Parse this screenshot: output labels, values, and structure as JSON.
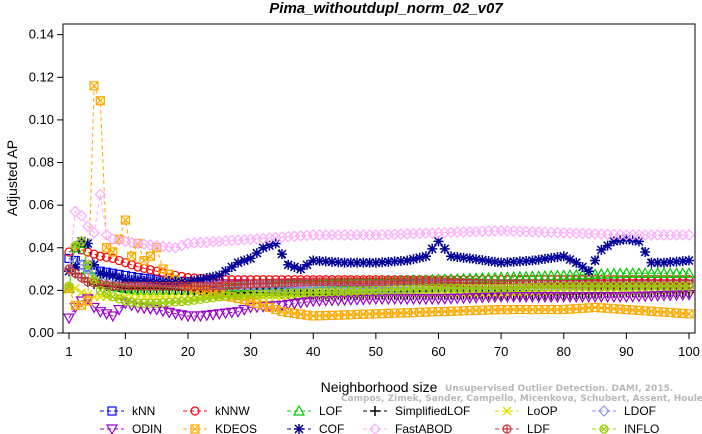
{
  "chart_data": {
    "type": "line",
    "title": "Pima_withoutdupl_norm_02_v07",
    "xlabel": "Neighborhood size",
    "ylabel": "Adjusted AP",
    "xlim": [
      1,
      100
    ],
    "ylim": [
      0,
      0.145
    ],
    "x_ticks": [
      1,
      10,
      20,
      30,
      40,
      50,
      60,
      70,
      80,
      90,
      100
    ],
    "y_ticks": [
      "0.00",
      "0.02",
      "0.04",
      "0.06",
      "0.08",
      "0.10",
      "0.12",
      "0.14"
    ],
    "grid": false,
    "legend_position": "bottom",
    "watermark": [
      "Unsupervised Outlier Detection. DAMI, 2015.",
      "Campos, Zimek, Sander, Campello, Micenkova, Schubert, Assent, Houle"
    ],
    "series": [
      {
        "name": "kNN",
        "color": "#0000ff",
        "marker": "square",
        "points": [
          [
            1,
            0.035
          ],
          [
            2,
            0.034
          ],
          [
            3,
            0.032
          ],
          [
            4,
            0.031
          ],
          [
            5,
            0.03
          ],
          [
            6,
            0.029
          ],
          [
            8,
            0.028
          ],
          [
            10,
            0.027
          ],
          [
            12,
            0.026
          ],
          [
            15,
            0.025
          ],
          [
            20,
            0.024
          ],
          [
            25,
            0.023
          ],
          [
            30,
            0.023
          ],
          [
            40,
            0.023
          ],
          [
            50,
            0.023
          ],
          [
            60,
            0.023
          ],
          [
            70,
            0.023
          ],
          [
            80,
            0.023
          ],
          [
            90,
            0.023
          ],
          [
            100,
            0.023
          ]
        ]
      },
      {
        "name": "kNNW",
        "color": "#ff0000",
        "marker": "circle",
        "points": [
          [
            1,
            0.038
          ],
          [
            2,
            0.04
          ],
          [
            3,
            0.039
          ],
          [
            4,
            0.038
          ],
          [
            5,
            0.037
          ],
          [
            6,
            0.036
          ],
          [
            8,
            0.035
          ],
          [
            10,
            0.033
          ],
          [
            12,
            0.031
          ],
          [
            15,
            0.029
          ],
          [
            18,
            0.027
          ],
          [
            20,
            0.026
          ],
          [
            25,
            0.025
          ],
          [
            30,
            0.025
          ],
          [
            40,
            0.025
          ],
          [
            50,
            0.025
          ],
          [
            60,
            0.025
          ],
          [
            70,
            0.025
          ],
          [
            80,
            0.025
          ],
          [
            90,
            0.025
          ],
          [
            100,
            0.025
          ]
        ]
      },
      {
        "name": "LOF",
        "color": "#00cc00",
        "marker": "triangle-up",
        "points": [
          [
            1,
            0.021
          ],
          [
            2,
            0.04
          ],
          [
            3,
            0.042
          ],
          [
            4,
            0.03
          ],
          [
            5,
            0.026
          ],
          [
            6,
            0.024
          ],
          [
            8,
            0.022
          ],
          [
            10,
            0.021
          ],
          [
            12,
            0.02
          ],
          [
            15,
            0.02
          ],
          [
            20,
            0.02
          ],
          [
            25,
            0.021
          ],
          [
            30,
            0.022
          ],
          [
            40,
            0.023
          ],
          [
            50,
            0.024
          ],
          [
            60,
            0.025
          ],
          [
            70,
            0.026
          ],
          [
            80,
            0.027
          ],
          [
            90,
            0.028
          ],
          [
            100,
            0.028
          ]
        ]
      },
      {
        "name": "SimplifiedLOF",
        "color": "#000000",
        "marker": "plus",
        "points": [
          [
            1,
            0.03
          ],
          [
            2,
            0.028
          ],
          [
            3,
            0.026
          ],
          [
            4,
            0.024
          ],
          [
            5,
            0.023
          ],
          [
            6,
            0.022
          ],
          [
            8,
            0.022
          ],
          [
            10,
            0.021
          ],
          [
            15,
            0.021
          ],
          [
            20,
            0.02
          ],
          [
            25,
            0.019
          ],
          [
            30,
            0.019
          ],
          [
            40,
            0.018
          ],
          [
            50,
            0.018
          ],
          [
            60,
            0.018
          ],
          [
            70,
            0.018
          ],
          [
            80,
            0.018
          ],
          [
            90,
            0.019
          ],
          [
            100,
            0.019
          ]
        ]
      },
      {
        "name": "LoOP",
        "color": "#e0e000",
        "marker": "cross",
        "points": [
          [
            1,
            0.02
          ],
          [
            2,
            0.021
          ],
          [
            3,
            0.019
          ],
          [
            4,
            0.018
          ],
          [
            5,
            0.017
          ],
          [
            8,
            0.017
          ],
          [
            10,
            0.017
          ],
          [
            15,
            0.017
          ],
          [
            20,
            0.017
          ],
          [
            30,
            0.017
          ],
          [
            40,
            0.017
          ],
          [
            50,
            0.018
          ],
          [
            60,
            0.018
          ],
          [
            70,
            0.018
          ],
          [
            80,
            0.019
          ],
          [
            90,
            0.019
          ],
          [
            100,
            0.02
          ]
        ]
      },
      {
        "name": "LDOF",
        "color": "#9090ff",
        "marker": "diamond",
        "points": [
          [
            1,
            0.03
          ],
          [
            2,
            0.033
          ],
          [
            3,
            0.032
          ],
          [
            4,
            0.03
          ],
          [
            5,
            0.028
          ],
          [
            6,
            0.027
          ],
          [
            8,
            0.026
          ],
          [
            10,
            0.025
          ],
          [
            15,
            0.024
          ],
          [
            20,
            0.023
          ],
          [
            30,
            0.022
          ],
          [
            40,
            0.021
          ],
          [
            50,
            0.021
          ],
          [
            60,
            0.021
          ],
          [
            70,
            0.021
          ],
          [
            80,
            0.022
          ],
          [
            90,
            0.022
          ],
          [
            100,
            0.022
          ]
        ]
      },
      {
        "name": "ODIN",
        "color": "#9900cc",
        "marker": "triangle-down",
        "points": [
          [
            1,
            0.007
          ],
          [
            2,
            0.012
          ],
          [
            3,
            0.015
          ],
          [
            4,
            0.016
          ],
          [
            5,
            0.012
          ],
          [
            6,
            0.01
          ],
          [
            7,
            0.009
          ],
          [
            8,
            0.008
          ],
          [
            10,
            0.014
          ],
          [
            12,
            0.012
          ],
          [
            15,
            0.011
          ],
          [
            18,
            0.009
          ],
          [
            20,
            0.008
          ],
          [
            22,
            0.008
          ],
          [
            25,
            0.009
          ],
          [
            28,
            0.01
          ],
          [
            30,
            0.012
          ],
          [
            35,
            0.013
          ],
          [
            40,
            0.015
          ],
          [
            50,
            0.016
          ],
          [
            60,
            0.016
          ],
          [
            70,
            0.017
          ],
          [
            80,
            0.017
          ],
          [
            90,
            0.017
          ],
          [
            100,
            0.018
          ]
        ]
      },
      {
        "name": "KDEOS",
        "color": "#ffaa00",
        "marker": "square-x",
        "points": [
          [
            1,
            0.021
          ],
          [
            2,
            0.013
          ],
          [
            3,
            0.013
          ],
          [
            4,
            0.015
          ],
          [
            5,
            0.116
          ],
          [
            6,
            0.109
          ],
          [
            7,
            0.04
          ],
          [
            8,
            0.038
          ],
          [
            9,
            0.044
          ],
          [
            10,
            0.053
          ],
          [
            11,
            0.036
          ],
          [
            12,
            0.042
          ],
          [
            13,
            0.034
          ],
          [
            14,
            0.036
          ],
          [
            15,
            0.04
          ],
          [
            16,
            0.03
          ],
          [
            18,
            0.025
          ],
          [
            20,
            0.022
          ],
          [
            25,
            0.018
          ],
          [
            30,
            0.015
          ],
          [
            35,
            0.01
          ],
          [
            40,
            0.008
          ],
          [
            50,
            0.009
          ],
          [
            60,
            0.01
          ],
          [
            70,
            0.011
          ],
          [
            80,
            0.011
          ],
          [
            85,
            0.012
          ],
          [
            90,
            0.011
          ],
          [
            95,
            0.01
          ],
          [
            100,
            0.009
          ]
        ]
      },
      {
        "name": "COF",
        "color": "#000099",
        "marker": "asterisk",
        "points": [
          [
            1,
            0.029
          ],
          [
            2,
            0.031
          ],
          [
            3,
            0.043
          ],
          [
            4,
            0.042
          ],
          [
            5,
            0.032
          ],
          [
            6,
            0.028
          ],
          [
            8,
            0.027
          ],
          [
            10,
            0.025
          ],
          [
            15,
            0.024
          ],
          [
            20,
            0.024
          ],
          [
            25,
            0.027
          ],
          [
            28,
            0.033
          ],
          [
            30,
            0.035
          ],
          [
            32,
            0.04
          ],
          [
            34,
            0.042
          ],
          [
            36,
            0.032
          ],
          [
            38,
            0.03
          ],
          [
            40,
            0.034
          ],
          [
            45,
            0.033
          ],
          [
            50,
            0.033
          ],
          [
            55,
            0.034
          ],
          [
            58,
            0.036
          ],
          [
            60,
            0.043
          ],
          [
            62,
            0.036
          ],
          [
            65,
            0.035
          ],
          [
            70,
            0.033
          ],
          [
            75,
            0.034
          ],
          [
            80,
            0.036
          ],
          [
            82,
            0.033
          ],
          [
            84,
            0.029
          ],
          [
            86,
            0.039
          ],
          [
            88,
            0.043
          ],
          [
            90,
            0.044
          ],
          [
            92,
            0.043
          ],
          [
            94,
            0.033
          ],
          [
            96,
            0.033
          ],
          [
            100,
            0.034
          ]
        ]
      },
      {
        "name": "FastABOD",
        "color": "#ffaaff",
        "marker": "diamond",
        "points": [
          [
            1,
            0.03
          ],
          [
            2,
            0.057
          ],
          [
            3,
            0.055
          ],
          [
            4,
            0.05
          ],
          [
            5,
            0.047
          ],
          [
            6,
            0.065
          ],
          [
            7,
            0.046
          ],
          [
            8,
            0.044
          ],
          [
            10,
            0.043
          ],
          [
            12,
            0.042
          ],
          [
            15,
            0.041
          ],
          [
            18,
            0.04
          ],
          [
            20,
            0.042
          ],
          [
            25,
            0.043
          ],
          [
            30,
            0.044
          ],
          [
            40,
            0.046
          ],
          [
            50,
            0.046
          ],
          [
            60,
            0.047
          ],
          [
            70,
            0.048
          ],
          [
            80,
            0.047
          ],
          [
            90,
            0.046
          ],
          [
            100,
            0.046
          ]
        ]
      },
      {
        "name": "LDF",
        "color": "#cc3333",
        "marker": "circle-plus",
        "points": [
          [
            1,
            0.03
          ],
          [
            2,
            0.028
          ],
          [
            3,
            0.026
          ],
          [
            4,
            0.024
          ],
          [
            6,
            0.023
          ],
          [
            8,
            0.022
          ],
          [
            10,
            0.022
          ],
          [
            15,
            0.022
          ],
          [
            20,
            0.022
          ],
          [
            25,
            0.022
          ],
          [
            30,
            0.023
          ],
          [
            40,
            0.024
          ],
          [
            50,
            0.024
          ],
          [
            60,
            0.024
          ],
          [
            70,
            0.023
          ],
          [
            80,
            0.023
          ],
          [
            90,
            0.023
          ],
          [
            100,
            0.023
          ]
        ]
      },
      {
        "name": "INFLO",
        "color": "#99cc00",
        "marker": "circle-x",
        "points": [
          [
            1,
            0.022
          ],
          [
            2,
            0.041
          ],
          [
            3,
            0.043
          ],
          [
            4,
            0.032
          ],
          [
            5,
            0.025
          ],
          [
            6,
            0.02
          ],
          [
            8,
            0.017
          ],
          [
            10,
            0.015
          ],
          [
            12,
            0.014
          ],
          [
            15,
            0.014
          ],
          [
            20,
            0.015
          ],
          [
            25,
            0.017
          ],
          [
            30,
            0.018
          ],
          [
            40,
            0.019
          ],
          [
            50,
            0.02
          ],
          [
            60,
            0.021
          ],
          [
            70,
            0.021
          ],
          [
            80,
            0.022
          ],
          [
            90,
            0.022
          ],
          [
            100,
            0.022
          ]
        ]
      }
    ]
  }
}
